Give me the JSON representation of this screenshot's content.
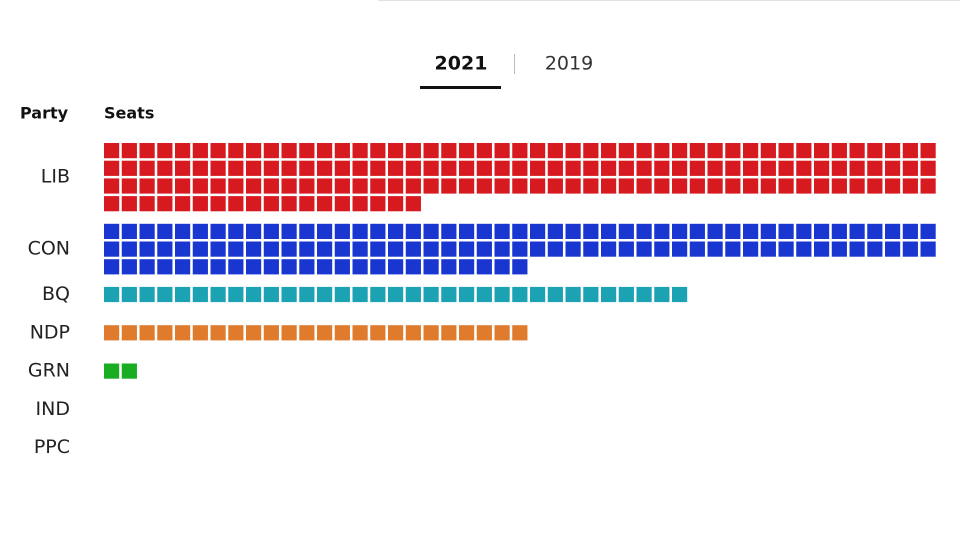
{
  "tabs": {
    "active": "2021",
    "other": "2019"
  },
  "headers": {
    "party": "Party",
    "seats": "Seats"
  },
  "parties": [
    {
      "name": "LIB",
      "seats": 159,
      "color": "#d71920"
    },
    {
      "name": "CON",
      "seats": 118,
      "color": "#1a36d1"
    },
    {
      "name": "BQ",
      "seats": 33,
      "color": "#1ca3b3"
    },
    {
      "name": "NDP",
      "seats": 24,
      "color": "#e07b2e"
    },
    {
      "name": "GRN",
      "seats": 2,
      "color": "#19ad24"
    },
    {
      "name": "IND",
      "seats": 0,
      "color": "#888888"
    },
    {
      "name": "PPC",
      "seats": 0,
      "color": "#6a3d9a"
    }
  ]
}
